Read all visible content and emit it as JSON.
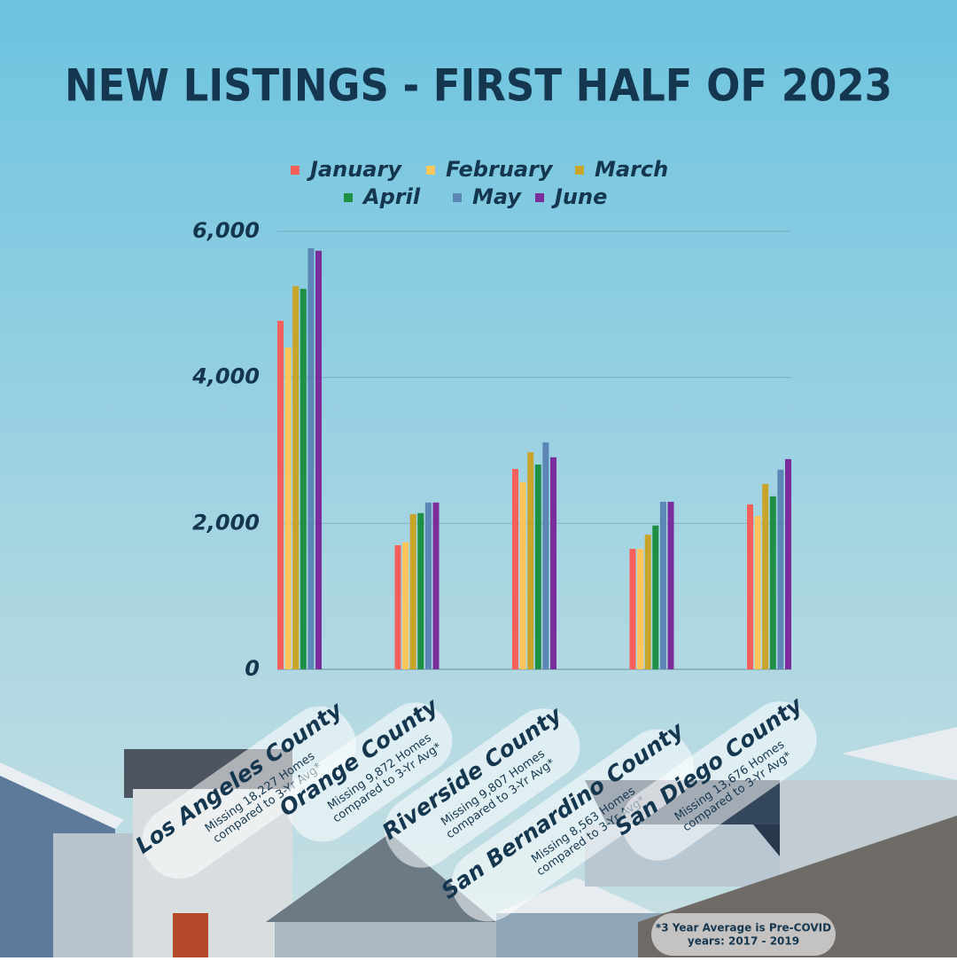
{
  "chart_data": {
    "type": "bar",
    "title": "NEW LISTINGS - FIRST HALF OF 2023",
    "categories": [
      "Los Angeles County",
      "Orange County",
      "Riverside County",
      "San Bernardino County",
      "San Diego County"
    ],
    "category_notes": [
      [
        "Missing 18,227 Homes",
        "compared to 3-Yr Avg*"
      ],
      [
        "Missing 9,872 Homes",
        "compared to 3-Yr Avg*"
      ],
      [
        "Missing 9,807 Homes",
        "compared to 3-Yr Avg*"
      ],
      [
        "Missing 8,563 Homes",
        "compared to 3-Yr Avg*"
      ],
      [
        "Missing 13,676 Homes",
        "compared to 3-Yr Avg*"
      ]
    ],
    "series": [
      {
        "name": "January",
        "color": "#f5605a",
        "values": [
          4775,
          1700,
          2745,
          1650,
          2260
        ]
      },
      {
        "name": "February",
        "color": "#ffc55a",
        "values": [
          4410,
          1740,
          2565,
          1650,
          2100
        ]
      },
      {
        "name": "March",
        "color": "#c9a42a",
        "values": [
          5250,
          2125,
          2975,
          1845,
          2540
        ]
      },
      {
        "name": "April",
        "color": "#1e8f45",
        "values": [
          5213,
          2140,
          2805,
          1970,
          2370
        ]
      },
      {
        "name": "May",
        "color": "#5b86b5",
        "values": [
          5770,
          2285,
          3110,
          2295,
          2735
        ]
      },
      {
        "name": "June",
        "color": "#7b2d9c",
        "values": [
          5735,
          2285,
          2905,
          2295,
          2880
        ]
      }
    ],
    "ylim": [
      0,
      6000
    ],
    "yticks": [
      0,
      {
        "value": 2000,
        "label": "2,000"
      },
      {
        "value": 4000,
        "label": "4,000"
      },
      {
        "value": 6000,
        "label": "6,000"
      }
    ],
    "grid": true,
    "footnote": [
      "*3 Year Average is Pre-COVID",
      "years: 2017 - 2019"
    ]
  }
}
